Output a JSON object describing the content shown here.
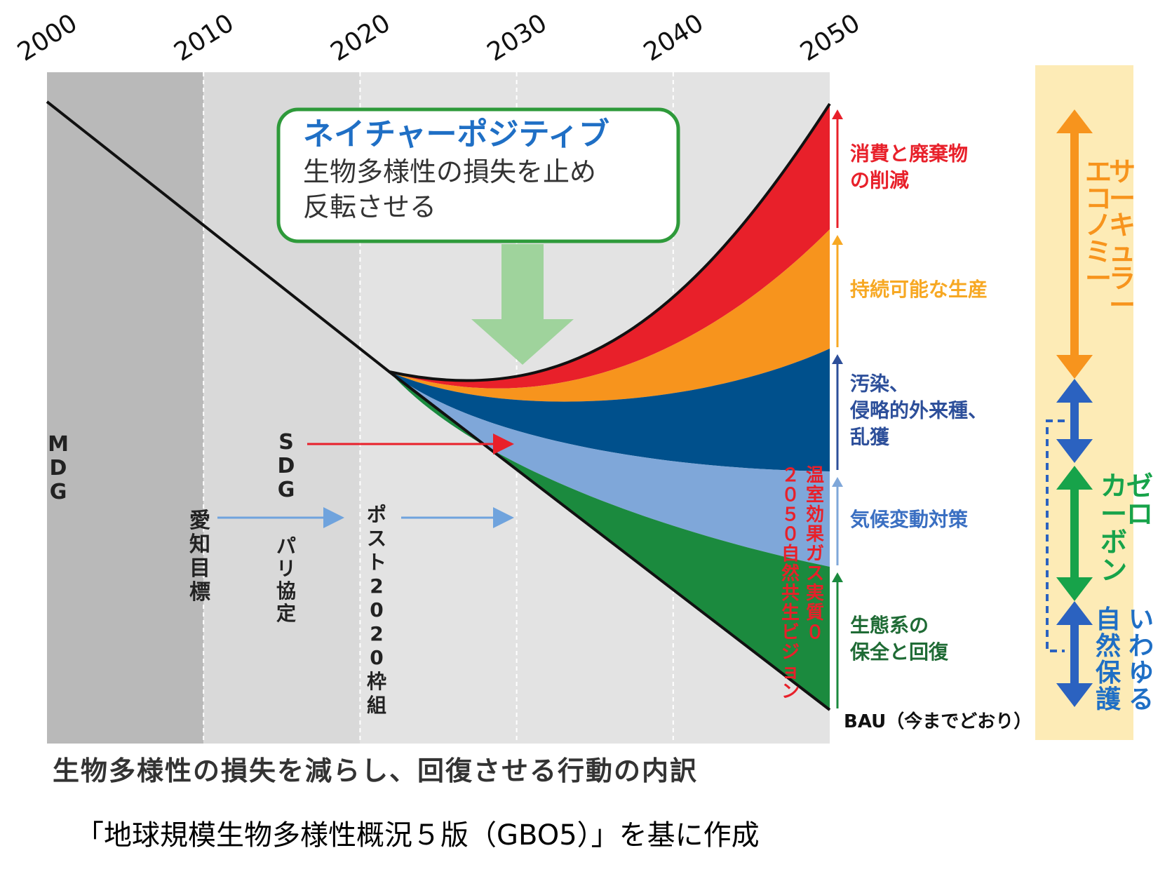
{
  "chart_data": {
    "type": "area",
    "x": [
      2000,
      2010,
      2020,
      2030,
      2040,
      2050
    ],
    "xlim": [
      2000,
      2050
    ],
    "tick_labels": [
      "2000",
      "2010",
      "2020",
      "2030",
      "2040",
      "2050"
    ],
    "bau_label": "BAU（今までどおり）",
    "bands": [
      {
        "label": "消費と廃棄物\nの削減",
        "color": "#e8202a"
      },
      {
        "label": "持続可能な生産",
        "color": "#f7941d"
      },
      {
        "label": "汚染、\n侵略的外来種、\n乱獲",
        "color": "#00508c"
      },
      {
        "label": "気候変動対策",
        "color": "#7fa7d9"
      },
      {
        "label": "生態系の\n保全と回復",
        "color": "#1b8a3e"
      }
    ],
    "label_colors": [
      "#e8202a",
      "#f7a823",
      "#2d4f9a",
      "#3a6fc2",
      "#1f6b35"
    ],
    "callout": {
      "title": "ネイチャーポジティブ",
      "body": "生物多様性の損失を止め\n反転させる"
    },
    "eras": [
      {
        "label": "MDG",
        "color": "#b9b9b9"
      },
      {
        "label": "愛知目標",
        "color": "#d9d9d9"
      },
      {
        "label": "ポスト2020枠組",
        "color": "#e3e3e3"
      }
    ],
    "annotations": {
      "sdg": "SDG",
      "paris": "パリ協定",
      "vision": "温室効果ガス実質０\n２０５０自然共生ビジョン"
    },
    "right_panel": {
      "circular": "サーキュラー\nエコノミー",
      "zero_carbon": "ゼロ\nカーボン",
      "conservation": "いわゆる\n自然保護",
      "colors": {
        "circular": "#f7941d",
        "zero_carbon": "#17a34a",
        "conservation": "#1f6fc5",
        "panel_bg": "#fdebb6"
      }
    }
  },
  "footer": {
    "title": "生物多様性の損失を減らし、回復させる行動の内訳",
    "source": "「地球規模生物多様性概況５版（GBO5）」を基に作成"
  }
}
